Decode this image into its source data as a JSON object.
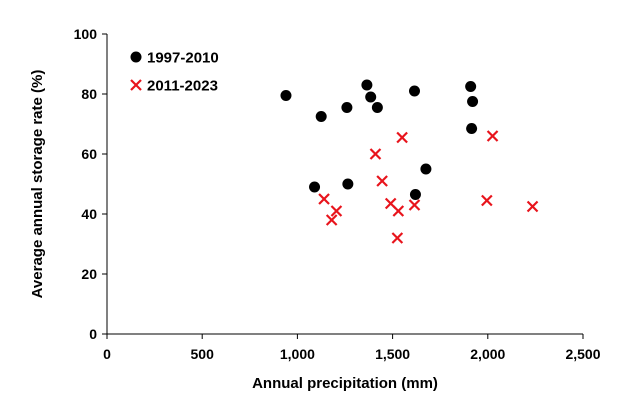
{
  "chart_data": {
    "type": "scatter",
    "xlabel": "Annual precipitation (mm)",
    "ylabel": "Average annual storage rate (%)",
    "xlim": [
      0,
      2500
    ],
    "ylim": [
      0,
      100
    ],
    "x_ticks": [
      0,
      500,
      1000,
      1500,
      2000,
      2500
    ],
    "x_tick_labels": [
      "0",
      "500",
      "1,000",
      "1,500",
      "2,000",
      "2,500"
    ],
    "y_ticks": [
      0,
      20,
      40,
      60,
      80,
      100
    ],
    "y_tick_labels": [
      "0",
      "20",
      "40",
      "60",
      "80",
      "100"
    ],
    "grid": false,
    "legend_position": "top-left",
    "series": [
      {
        "name": "1997-2010",
        "marker": "circle",
        "color": "#000000",
        "points": [
          {
            "x": 940,
            "y": 79.5
          },
          {
            "x": 1090,
            "y": 49
          },
          {
            "x": 1125,
            "y": 72.5
          },
          {
            "x": 1260,
            "y": 75.5
          },
          {
            "x": 1265,
            "y": 50
          },
          {
            "x": 1365,
            "y": 83
          },
          {
            "x": 1385,
            "y": 79
          },
          {
            "x": 1420,
            "y": 75.5
          },
          {
            "x": 1615,
            "y": 81
          },
          {
            "x": 1620,
            "y": 46.5
          },
          {
            "x": 1675,
            "y": 55
          },
          {
            "x": 1910,
            "y": 82.5
          },
          {
            "x": 1915,
            "y": 68.5
          },
          {
            "x": 1920,
            "y": 77.5
          }
        ]
      },
      {
        "name": "2011-2023",
        "marker": "x",
        "color": "#e8141c",
        "points": [
          {
            "x": 1140,
            "y": 45
          },
          {
            "x": 1180,
            "y": 38
          },
          {
            "x": 1205,
            "y": 41
          },
          {
            "x": 1410,
            "y": 60
          },
          {
            "x": 1445,
            "y": 51
          },
          {
            "x": 1490,
            "y": 43.5
          },
          {
            "x": 1525,
            "y": 32
          },
          {
            "x": 1530,
            "y": 41
          },
          {
            "x": 1550,
            "y": 65.5
          },
          {
            "x": 1615,
            "y": 43
          },
          {
            "x": 1995,
            "y": 44.5
          },
          {
            "x": 2025,
            "y": 66
          },
          {
            "x": 2235,
            "y": 42.5
          }
        ]
      }
    ]
  }
}
